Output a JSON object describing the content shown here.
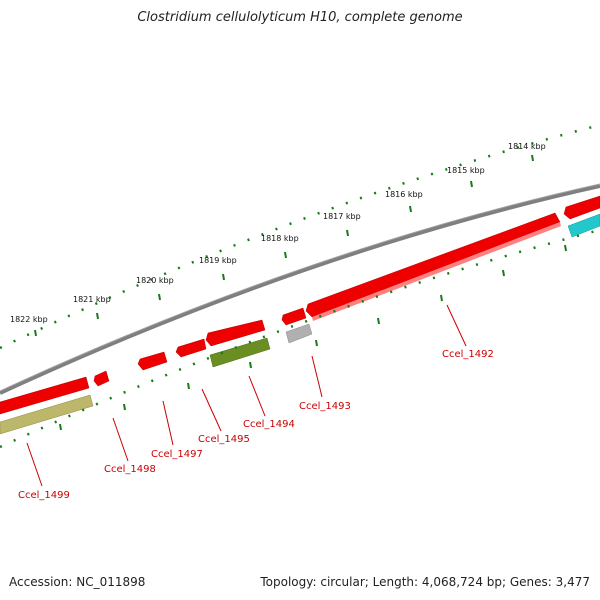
{
  "title": "Clostridium cellulolyticum H10, complete genome",
  "accession": "Accession: NC_011898",
  "summary": "Topology: circular; Length: 4,068,724 bp; Genes: 3,477",
  "colors": {
    "backbone": "#808080",
    "ticks": "#1a7a1a",
    "gene_forward": "#ee0000",
    "gene_olive": "#6b8e23",
    "gene_khaki": "#bdb76b",
    "gene_gray": "#b0b0b0",
    "gene_cyan": "#22c8cc",
    "label": "#cc0000"
  },
  "scale_labels": [
    "1814 kbp",
    "1815 kbp",
    "1816 kbp",
    "1817 kbp",
    "1818 kbp",
    "1819 kbp",
    "1820 kbp",
    "1821 kbp",
    "1822 kbp"
  ],
  "gene_labels": [
    "Ccel_1492",
    "Ccel_1493",
    "Ccel_1494",
    "Ccel_1495",
    "Ccel_1497",
    "Ccel_1498",
    "Ccel_1499"
  ]
}
